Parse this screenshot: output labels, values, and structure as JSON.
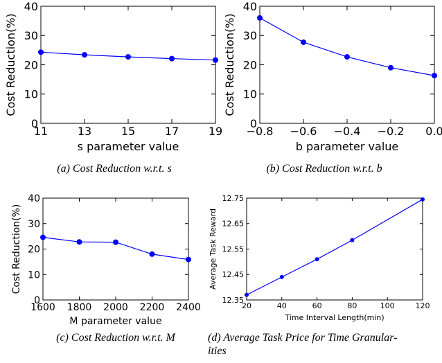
{
  "chart_data": [
    {
      "type": "line",
      "x": [
        11,
        13,
        15,
        17,
        19
      ],
      "values": [
        24.3,
        23.4,
        22.7,
        22.1,
        21.6
      ],
      "xlabel": "s parameter value",
      "ylabel": "Cost Reduction(%)",
      "xlim": [
        11,
        19
      ],
      "ylim": [
        0,
        40
      ],
      "xticks": [
        "11",
        "13",
        "15",
        "17",
        "19"
      ],
      "yticks": [
        "0",
        "10",
        "20",
        "30",
        "40"
      ],
      "caption": "(a)  Cost Reduction w.r.t. s",
      "color": "#0000ff"
    },
    {
      "type": "line",
      "x": [
        -0.8,
        -0.6,
        -0.4,
        -0.2,
        0.0
      ],
      "values": [
        36.0,
        27.7,
        22.7,
        19.0,
        16.3
      ],
      "xlabel": "b parameter value",
      "ylabel": "Cost Reduction(%)",
      "xlim": [
        -0.8,
        0.0
      ],
      "ylim": [
        0,
        40
      ],
      "xticks": [
        "−0.8",
        "−0.6",
        "−0.4",
        "−0.2",
        "0.0"
      ],
      "yticks": [
        "0",
        "10",
        "20",
        "30",
        "40"
      ],
      "caption": "(b)  Cost Reduction w.r.t. b",
      "color": "#0000ff"
    },
    {
      "type": "line",
      "x": [
        1600,
        1800,
        2000,
        2200,
        2400
      ],
      "values": [
        24.6,
        22.8,
        22.7,
        18.0,
        15.9
      ],
      "xlabel": "M parameter value",
      "ylabel": "Cost Reduction(%)",
      "xlim": [
        1600,
        2400
      ],
      "ylim": [
        0,
        40
      ],
      "xticks": [
        "1600",
        "1800",
        "2000",
        "2200",
        "2400"
      ],
      "yticks": [
        "0",
        "10",
        "20",
        "30",
        "40"
      ],
      "caption": "(c)  Cost Reduction w.r.t. M",
      "color": "#0000ff"
    },
    {
      "type": "line",
      "x": [
        20,
        40,
        60,
        80,
        120
      ],
      "values": [
        12.37,
        12.44,
        12.51,
        12.585,
        12.745
      ],
      "xlabel": "Time Interval Length(min)",
      "ylabel": "Average Task Reward",
      "xlim": [
        20,
        120
      ],
      "ylim": [
        12.35,
        12.75
      ],
      "xticks": [
        "20",
        "40",
        "60",
        "80",
        "100",
        "120"
      ],
      "yticks": [
        "12.35",
        "12.45",
        "12.55",
        "12.65",
        "12.75"
      ],
      "caption": "(d)  Average Task Price for Time Granular-",
      "caption2": "ities",
      "color": "#0000ff"
    }
  ]
}
